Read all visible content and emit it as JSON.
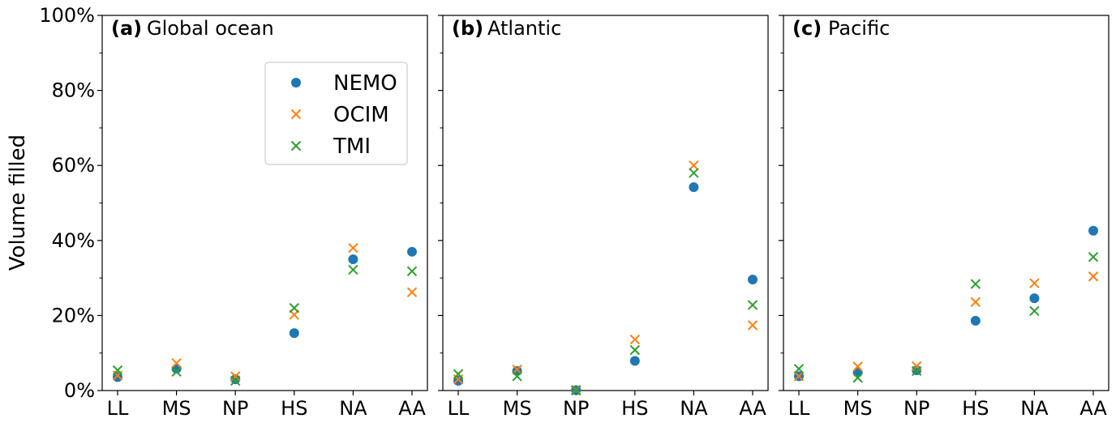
{
  "chart_data": {
    "type": "scatter",
    "ylabel": "Volume filled",
    "ylim": [
      0,
      100
    ],
    "yticks": [
      "0%",
      "20%",
      "40%",
      "60%",
      "80%",
      "100%"
    ],
    "categories": [
      "LL",
      "MS",
      "NP",
      "HS",
      "NA",
      "AA"
    ],
    "legend": {
      "location": "upper right of panel (a)",
      "entries": [
        "NEMO",
        "OCIM",
        "TMI"
      ]
    },
    "colors": {
      "NEMO": "#1f77b4",
      "OCIM": "#ff7f0e",
      "TMI": "#2ca02c"
    },
    "markers": {
      "NEMO": "circle",
      "OCIM": "x",
      "TMI": "x"
    },
    "panels": [
      {
        "tag": "(a)",
        "title": "Global ocean",
        "series": [
          {
            "name": "NEMO",
            "values": [
              3.6,
              5.8,
              3.0,
              15.3,
              35.0,
              37.0
            ]
          },
          {
            "name": "OCIM",
            "values": [
              4.0,
              7.3,
              3.8,
              20.2,
              38.0,
              26.2
            ]
          },
          {
            "name": "TMI",
            "values": [
              5.4,
              5.0,
              2.6,
              22.0,
              32.2,
              31.8
            ]
          }
        ]
      },
      {
        "tag": "(b)",
        "title": "Atlantic",
        "series": [
          {
            "name": "NEMO",
            "values": [
              2.6,
              5.2,
              0.1,
              7.9,
              54.2,
              29.6
            ]
          },
          {
            "name": "OCIM",
            "values": [
              3.0,
              5.6,
              0.2,
              13.6,
              60.0,
              17.4
            ]
          },
          {
            "name": "TMI",
            "values": [
              4.4,
              3.8,
              0.0,
              10.8,
              58.0,
              22.8
            ]
          }
        ]
      },
      {
        "tag": "(c)",
        "title": "Pacific",
        "series": [
          {
            "name": "NEMO",
            "values": [
              3.8,
              4.8,
              5.4,
              18.6,
              24.6,
              42.6
            ]
          },
          {
            "name": "OCIM",
            "values": [
              3.8,
              6.4,
              6.5,
              23.6,
              28.6,
              30.4
            ]
          },
          {
            "name": "TMI",
            "values": [
              5.8,
              3.4,
              5.2,
              28.4,
              21.2,
              35.6
            ]
          }
        ]
      }
    ]
  }
}
